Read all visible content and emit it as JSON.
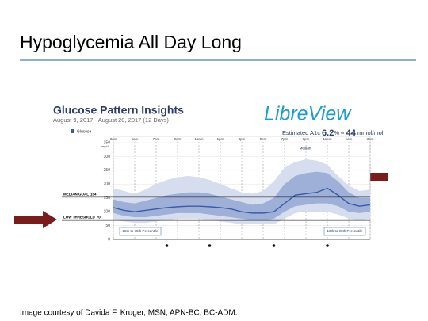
{
  "slide_title": "Hypoglycemia All Day Long",
  "caption": "Image courtesy of Davida F. Kruger, MSN, APN-BC, BC-ADM.",
  "chart_data": {
    "type": "percentile-band",
    "title": "Glucose Pattern Insights",
    "subtitle": "August 9, 2017 - August 20, 2017 (12 Days)",
    "legend_item": "Glucose",
    "brand": "LibreView",
    "a1c": {
      "label": "Estimated A1c",
      "value": 6.2,
      "unit": "%",
      "connector": "or",
      "mmol": 44,
      "mmol_unit": "mmol/mol"
    },
    "ylabel": "mg/dL",
    "x": [
      3,
      4,
      5,
      6,
      7,
      8,
      9,
      10,
      11,
      12,
      13,
      14,
      15,
      16,
      17,
      18,
      19,
      20,
      21,
      22,
      23,
      24,
      25,
      26,
      27
    ],
    "xlim": [
      3,
      27
    ],
    "xticks": [
      {
        "value": 3,
        "label": "3am"
      },
      {
        "value": 5,
        "label": "5am"
      },
      {
        "value": 7,
        "label": "7am"
      },
      {
        "value": 9,
        "label": "9am"
      },
      {
        "value": 11,
        "label": "11am"
      },
      {
        "value": 13,
        "label": "1pm"
      },
      {
        "value": 15,
        "label": "3pm"
      },
      {
        "value": 17,
        "label": "5pm"
      },
      {
        "value": 19,
        "label": "7pm"
      },
      {
        "value": 21,
        "label": "9pm"
      },
      {
        "value": 23,
        "label": "11pm"
      },
      {
        "value": 25,
        "label": "1am"
      },
      {
        "value": 27,
        "label": "3am"
      }
    ],
    "ylim": [
      0,
      350
    ],
    "yticks": [
      0,
      50,
      100,
      150,
      200,
      250,
      300,
      350
    ],
    "grid": true,
    "bands": [
      {
        "name": "10th to 90th Percentile",
        "color": "#d6ddef",
        "lower": [
          70,
          65,
          60,
          60,
          65,
          70,
          75,
          75,
          75,
          70,
          65,
          60,
          55,
          55,
          55,
          55,
          75,
          95,
          100,
          100,
          100,
          90,
          75,
          70,
          75
        ],
        "upper": [
          185,
          175,
          165,
          180,
          200,
          215,
          225,
          230,
          225,
          215,
          200,
          185,
          170,
          165,
          175,
          210,
          260,
          280,
          290,
          285,
          270,
          230,
          195,
          175,
          180
        ]
      },
      {
        "name": "25th to 75th Percentile",
        "color": "#9eafd8",
        "lower": [
          95,
          85,
          80,
          80,
          85,
          90,
          95,
          95,
          95,
          90,
          85,
          80,
          75,
          70,
          70,
          75,
          100,
          120,
          125,
          130,
          130,
          120,
          100,
          95,
          100
        ],
        "upper": [
          145,
          135,
          130,
          140,
          150,
          160,
          165,
          170,
          170,
          165,
          155,
          145,
          135,
          125,
          130,
          150,
          200,
          230,
          240,
          245,
          240,
          210,
          170,
          150,
          150
        ]
      }
    ],
    "series": [
      {
        "name": "Median",
        "color": "#3a5ca8",
        "values": [
          115,
          105,
          100,
          105,
          110,
          115,
          118,
          120,
          120,
          118,
          115,
          110,
          100,
          95,
          95,
          100,
          130,
          160,
          165,
          170,
          185,
          160,
          130,
          120,
          125
        ]
      }
    ],
    "reference_lines": [
      {
        "label": "MEDIAN GOAL",
        "value": 154
      },
      {
        "label": "LOW THRESHOLD",
        "value": 70
      }
    ]
  }
}
